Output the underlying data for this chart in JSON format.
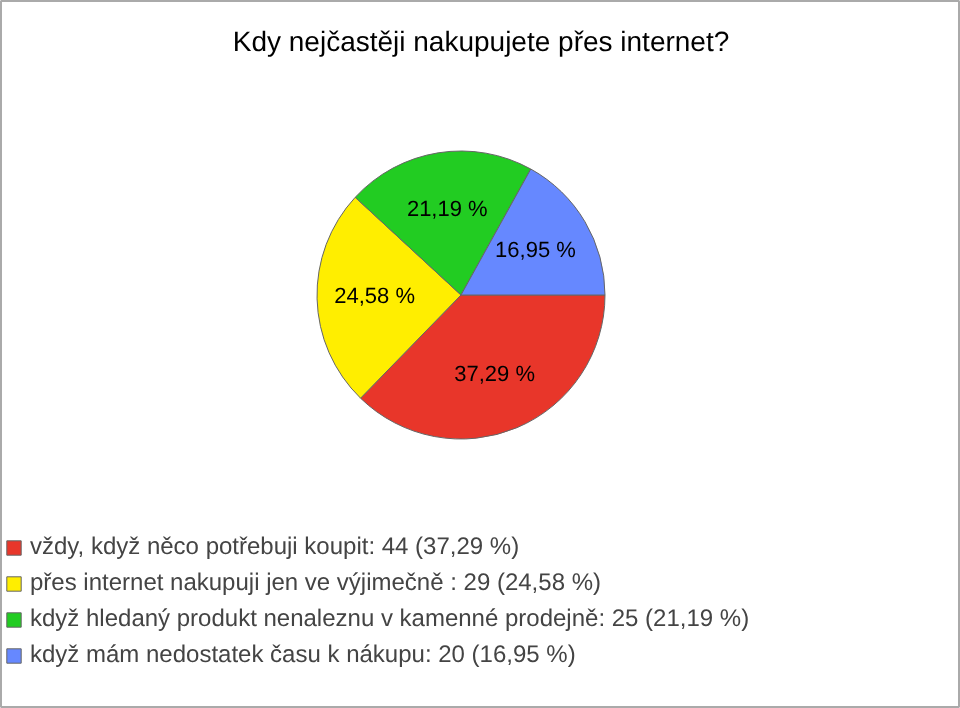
{
  "chart_data": {
    "type": "pie",
    "title": "Kdy nejčastěji nakupujete přes internet?",
    "categories": [
      "vždy, když něco potřebuji koupit: 44 (37,29 %)",
      "přes internet nakupuji jen ve výjimečně : 29 (24,58 %)",
      "když hledaný produkt nenaleznu v kamenné prodejně: 25 (21,19 %)",
      "když mám nedostatek času k nákupu: 20 (16,95 %)"
    ],
    "values": [
      37.29,
      24.58,
      21.19,
      16.95
    ],
    "colors": [
      "#e8362a",
      "#ffee00",
      "#22cc22",
      "#6688ff"
    ],
    "value_labels": [
      "37,29 %",
      "24,58 %",
      "21,19 %",
      "16,95 %"
    ],
    "legend": "bottom"
  }
}
